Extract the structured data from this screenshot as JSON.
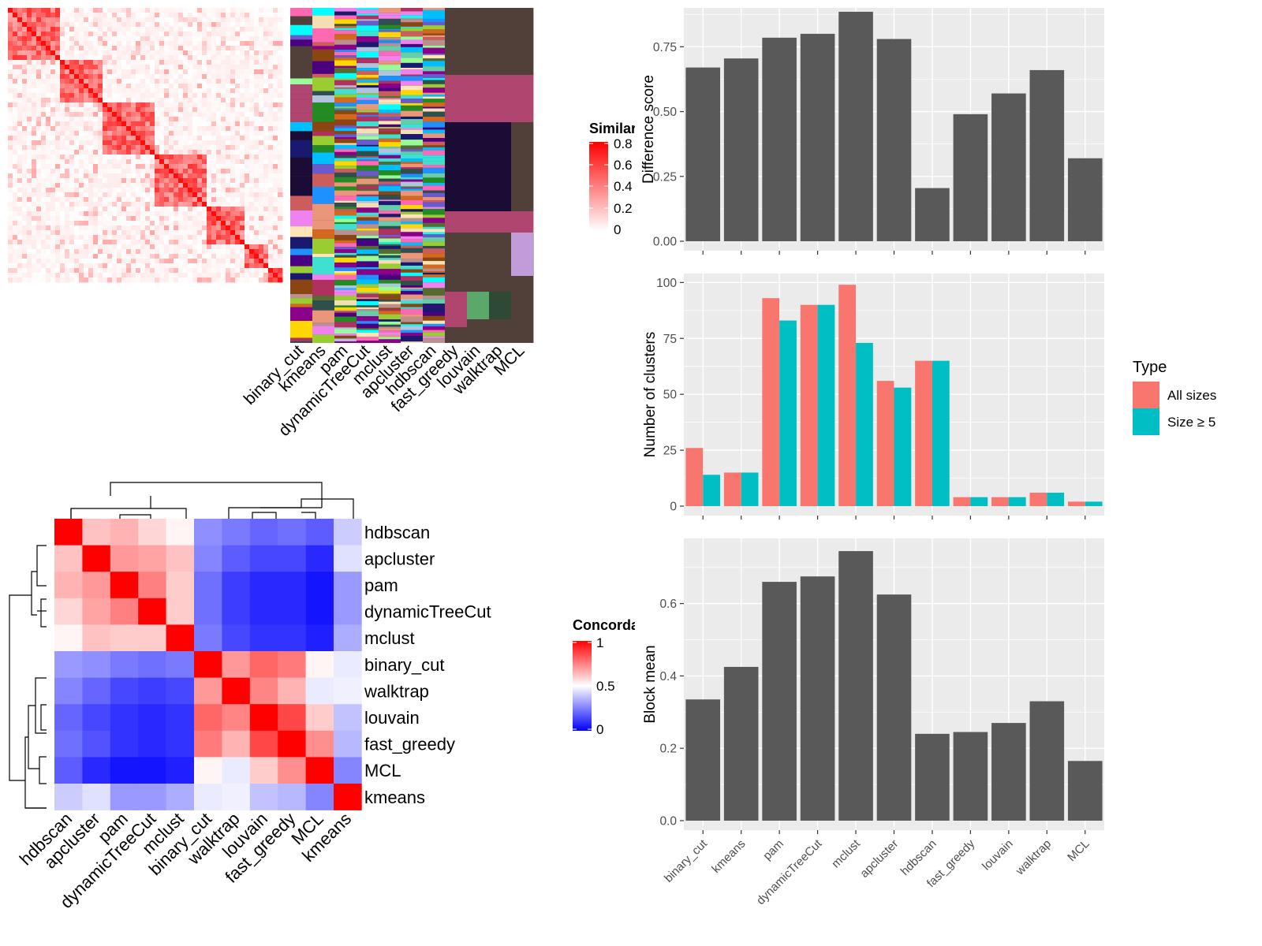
{
  "similarity_panel": {
    "legend_title": "Similarity",
    "legend_ticks": [
      "0.8",
      "0.6",
      "0.4",
      "0.2",
      "0"
    ],
    "legend_colors": [
      "#ffffff",
      "#ff0000"
    ],
    "method_labels": [
      "binary_cut",
      "kmeans",
      "pam",
      "dynamicTreeCut",
      "mclust",
      "apcluster",
      "hdbscan",
      "fast_greedy",
      "louvain",
      "walktrap",
      "MCL"
    ],
    "cluster_palette": [
      "#ee82ee",
      "#d2691e",
      "#8b4513",
      "#1e90ff",
      "#98fb98",
      "#2f4f4f",
      "#ffe4b5",
      "#8b008b",
      "#00ffff",
      "#cd5c5c",
      "#556b2f",
      "#00bfff",
      "#ff69b4",
      "#4b0082",
      "#66cdaa",
      "#bc8f8f",
      "#191970",
      "#9acd32",
      "#6a5acd",
      "#f5deb3",
      "#228b22",
      "#e9967a",
      "#b0c4de",
      "#ffd700",
      "#40e0d0",
      "#b03060"
    ],
    "colors": {
      "dark_brown": "#51403a",
      "magenta": "#b04670",
      "navy": "#1a0c35",
      "lavender": "#c09cd8",
      "green": "#5aa96a",
      "dark_green": "#2e4a36"
    }
  },
  "concordance_panel": {
    "legend_title": "Concordance",
    "legend_ticks": [
      "1",
      "0.5",
      "0"
    ],
    "legend_colors": [
      "#0000ff",
      "#ffffff",
      "#ff0000"
    ],
    "row_labels": [
      "hdbscan",
      "apcluster",
      "pam",
      "dynamicTreeCut",
      "mclust",
      "binary_cut",
      "walktrap",
      "louvain",
      "fast_greedy",
      "MCL",
      "kmeans"
    ],
    "col_labels": [
      "hdbscan",
      "apcluster",
      "pam",
      "dynamicTreeCut",
      "mclust",
      "binary_cut",
      "walktrap",
      "louvain",
      "fast_greedy",
      "MCL",
      "kmeans"
    ],
    "matrix": [
      [
        1.0,
        0.62,
        0.65,
        0.58,
        0.52,
        0.28,
        0.24,
        0.2,
        0.22,
        0.18,
        0.4
      ],
      [
        0.62,
        1.0,
        0.7,
        0.68,
        0.62,
        0.26,
        0.18,
        0.14,
        0.14,
        0.08,
        0.44
      ],
      [
        0.65,
        0.7,
        1.0,
        0.75,
        0.6,
        0.22,
        0.12,
        0.08,
        0.08,
        0.04,
        0.3
      ],
      [
        0.58,
        0.68,
        0.75,
        1.0,
        0.6,
        0.22,
        0.12,
        0.08,
        0.08,
        0.04,
        0.3
      ],
      [
        0.52,
        0.62,
        0.6,
        0.6,
        1.0,
        0.24,
        0.14,
        0.1,
        0.1,
        0.06,
        0.34
      ],
      [
        0.3,
        0.28,
        0.24,
        0.22,
        0.24,
        1.0,
        0.7,
        0.8,
        0.76,
        0.52,
        0.46
      ],
      [
        0.26,
        0.2,
        0.14,
        0.12,
        0.14,
        0.7,
        1.0,
        0.74,
        0.65,
        0.46,
        0.47
      ],
      [
        0.2,
        0.14,
        0.1,
        0.08,
        0.1,
        0.8,
        0.74,
        1.0,
        0.86,
        0.6,
        0.38
      ],
      [
        0.22,
        0.16,
        0.1,
        0.08,
        0.1,
        0.76,
        0.65,
        0.86,
        1.0,
        0.72,
        0.36
      ],
      [
        0.18,
        0.08,
        0.04,
        0.04,
        0.06,
        0.52,
        0.46,
        0.6,
        0.72,
        1.0,
        0.26
      ],
      [
        0.4,
        0.44,
        0.3,
        0.3,
        0.34,
        0.46,
        0.47,
        0.38,
        0.36,
        0.26,
        1.0
      ]
    ]
  },
  "chart_data": [
    {
      "type": "bar",
      "title": "",
      "xlabel": "",
      "ylabel": "Difference score",
      "categories": [
        "binary_cut",
        "kmeans",
        "pam",
        "dynamicTreeCut",
        "mclust",
        "apcluster",
        "hdbscan",
        "fast_greedy",
        "louvain",
        "walktrap",
        "MCL"
      ],
      "values": [
        0.67,
        0.705,
        0.785,
        0.8,
        0.885,
        0.78,
        0.205,
        0.49,
        0.57,
        0.66,
        0.32
      ],
      "ylim": [
        0,
        0.9
      ],
      "yticks": [
        "0.00",
        "0.25",
        "0.50",
        "0.75"
      ],
      "bar_color": "#595959",
      "panel_bg": "#ebebeb",
      "grid": true
    },
    {
      "type": "bar",
      "title": "",
      "xlabel": "",
      "ylabel": "Number of clusters",
      "categories": [
        "binary_cut",
        "kmeans",
        "pam",
        "dynamicTreeCut",
        "mclust",
        "apcluster",
        "hdbscan",
        "fast_greedy",
        "louvain",
        "walktrap",
        "MCL"
      ],
      "series": [
        {
          "name": "All sizes",
          "color": "#f8766d",
          "values": [
            26,
            15,
            93,
            90,
            99,
            56,
            65,
            4,
            4,
            6,
            2
          ]
        },
        {
          "name": "Size ≥ 5",
          "color": "#00bfc4",
          "values": [
            14,
            15,
            83,
            90,
            73,
            53,
            65,
            4,
            4,
            6,
            2
          ]
        }
      ],
      "legend_title": "Type",
      "legend_position": "right",
      "ylim": [
        0,
        104
      ],
      "yticks": [
        "0",
        "25",
        "50",
        "75",
        "100"
      ],
      "panel_bg": "#ebebeb",
      "grid": true
    },
    {
      "type": "bar",
      "title": "",
      "xlabel": "",
      "ylabel": "Block mean",
      "categories": [
        "binary_cut",
        "kmeans",
        "pam",
        "dynamicTreeCut",
        "mclust",
        "apcluster",
        "hdbscan",
        "fast_greedy",
        "louvain",
        "walktrap",
        "MCL"
      ],
      "values": [
        0.335,
        0.425,
        0.66,
        0.675,
        0.745,
        0.625,
        0.24,
        0.245,
        0.27,
        0.33,
        0.165
      ],
      "ylim": [
        0,
        0.78
      ],
      "yticks": [
        "0.0",
        "0.2",
        "0.4",
        "0.6"
      ],
      "bar_color": "#595959",
      "panel_bg": "#ebebeb",
      "grid": true
    }
  ]
}
